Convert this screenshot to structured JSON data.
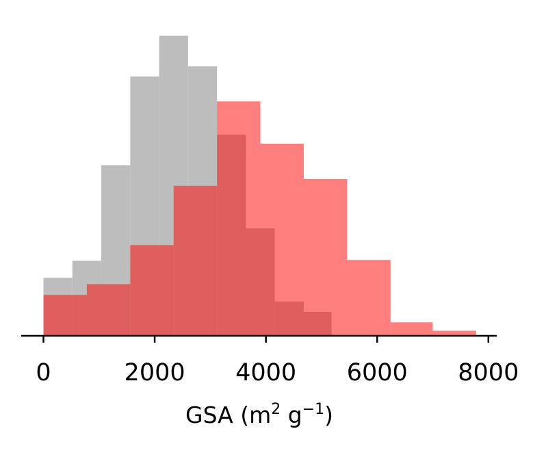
{
  "chart_data": {
    "type": "bar",
    "title": "",
    "xlabel": {
      "base": "GSA (m",
      "sup1": "2",
      "mid": " g",
      "sup2": "−1",
      "end": ")"
    },
    "ylabel": "",
    "xlim": [
      -400,
      8150
    ],
    "ylim": [
      0,
      1
    ],
    "x_ticks": [
      0,
      2000,
      4000,
      6000,
      8000
    ],
    "x_tick_labels": [
      "0",
      "2000",
      "4000",
      "6000",
      "8000"
    ],
    "grid": false,
    "series": [
      {
        "color": "#bdbdbd",
        "opacity": 1,
        "bins": [
          {
            "x0": 0,
            "x1": 520,
            "value": 0.193
          },
          {
            "x0": 520,
            "x1": 1040,
            "value": 0.25
          },
          {
            "x0": 1040,
            "x1": 1560,
            "value": 0.568
          },
          {
            "x0": 1560,
            "x1": 2080,
            "value": 0.864
          },
          {
            "x0": 2080,
            "x1": 2600,
            "value": 1.0
          },
          {
            "x0": 2600,
            "x1": 3120,
            "value": 0.898
          },
          {
            "x0": 3120,
            "x1": 3640,
            "value": 0.67
          },
          {
            "x0": 3640,
            "x1": 4160,
            "value": 0.358
          },
          {
            "x0": 4160,
            "x1": 4680,
            "value": 0.114
          },
          {
            "x0": 4680,
            "x1": 5180,
            "value": 0.08
          }
        ]
      },
      {
        "color": "#ff0000",
        "opacity": 0.5,
        "bins": [
          {
            "x0": 0,
            "x1": 780,
            "value": 0.136
          },
          {
            "x0": 780,
            "x1": 1560,
            "value": 0.172
          },
          {
            "x0": 1560,
            "x1": 2340,
            "value": 0.302
          },
          {
            "x0": 2340,
            "x1": 3120,
            "value": 0.5
          },
          {
            "x0": 3120,
            "x1": 3900,
            "value": 0.781
          },
          {
            "x0": 3900,
            "x1": 4680,
            "value": 0.64
          },
          {
            "x0": 4680,
            "x1": 5460,
            "value": 0.523
          },
          {
            "x0": 5460,
            "x1": 6240,
            "value": 0.253
          },
          {
            "x0": 6240,
            "x1": 7000,
            "value": 0.045
          },
          {
            "x0": 7000,
            "x1": 7780,
            "value": 0.017
          }
        ]
      }
    ]
  }
}
